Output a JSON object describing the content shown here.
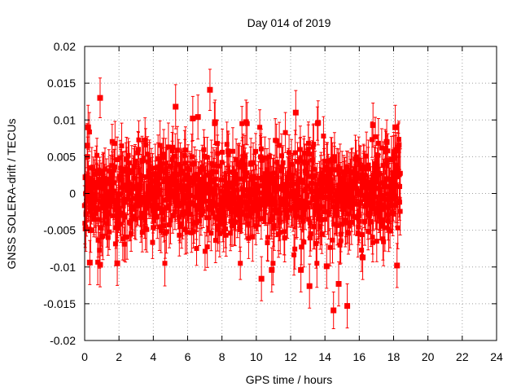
{
  "chart_data": {
    "type": "scatter",
    "title": "Day 014 of 2019",
    "xlabel": "GPS time / hours",
    "ylabel": "GNSS SOLERA-drift / TECUs",
    "xlim": [
      0,
      24
    ],
    "ylim": [
      -0.02,
      0.02
    ],
    "x_ticks": [
      0,
      2,
      4,
      6,
      8,
      10,
      12,
      14,
      16,
      18,
      20,
      22,
      24
    ],
    "x_tick_labels": [
      "0",
      "2",
      "4",
      "6",
      "8",
      "10",
      "12",
      "14",
      "16",
      "18",
      "20",
      "22",
      "24"
    ],
    "y_ticks": [
      -0.02,
      -0.015,
      -0.01,
      -0.005,
      0,
      0.005,
      0.01,
      0.015,
      0.02
    ],
    "y_tick_labels": [
      "-0.02",
      "-0.015",
      "-0.01",
      "-0.005",
      "0",
      "0.005",
      "0.01",
      "0.015",
      "0.02"
    ],
    "grid": true,
    "marker": "square",
    "error_bars": true,
    "series_color": "#ff0000",
    "x_range_of_data": [
      0,
      18.4
    ],
    "points": [
      {
        "x": 0.05,
        "y": 0.0022,
        "err": 0.003
      },
      {
        "x": 0.1,
        "y": -0.0028,
        "err": 0.003
      },
      {
        "x": 0.15,
        "y": 0.0065,
        "err": 0.003
      },
      {
        "x": 0.2,
        "y": 0.009,
        "err": 0.003
      },
      {
        "x": 0.3,
        "y": -0.0094,
        "err": 0.003
      },
      {
        "x": 0.35,
        "y": -0.005,
        "err": 0.003
      },
      {
        "x": 0.9,
        "y": 0.013,
        "err": 0.0027
      },
      {
        "x": 0.9,
        "y": -0.0097,
        "err": 0.003
      },
      {
        "x": 1.9,
        "y": -0.0095,
        "err": 0.003
      },
      {
        "x": 5.3,
        "y": 0.0118,
        "err": 0.003
      },
      {
        "x": 6.3,
        "y": 0.0102,
        "err": 0.003
      },
      {
        "x": 6.6,
        "y": 0.0104,
        "err": 0.003
      },
      {
        "x": 7.3,
        "y": 0.0141,
        "err": 0.0028
      },
      {
        "x": 7.6,
        "y": 0.0097,
        "err": 0.003
      },
      {
        "x": 9.4,
        "y": 0.0097,
        "err": 0.003
      },
      {
        "x": 10.3,
        "y": -0.0116,
        "err": 0.003
      },
      {
        "x": 10.9,
        "y": -0.0104,
        "err": 0.003
      },
      {
        "x": 12.3,
        "y": 0.011,
        "err": 0.003
      },
      {
        "x": 12.6,
        "y": -0.0104,
        "err": 0.003
      },
      {
        "x": 13.1,
        "y": -0.0126,
        "err": 0.003
      },
      {
        "x": 13.6,
        "y": 0.0096,
        "err": 0.003
      },
      {
        "x": 14.1,
        "y": -0.0099,
        "err": 0.003
      },
      {
        "x": 14.5,
        "y": -0.0159,
        "err": 0.0025
      },
      {
        "x": 14.8,
        "y": -0.0123,
        "err": 0.003
      },
      {
        "x": 15.3,
        "y": -0.0153,
        "err": 0.003
      },
      {
        "x": 16.2,
        "y": -0.0087,
        "err": 0.003
      },
      {
        "x": 16.8,
        "y": 0.0093,
        "err": 0.003
      },
      {
        "x": 17.6,
        "y": 0.007,
        "err": 0.003
      },
      {
        "x": 18.1,
        "y": 0.009,
        "err": 0.003
      },
      {
        "x": 18.2,
        "y": -0.0098,
        "err": 0.003
      },
      {
        "x": 18.3,
        "y": 0.0066,
        "err": 0.003
      }
    ]
  }
}
